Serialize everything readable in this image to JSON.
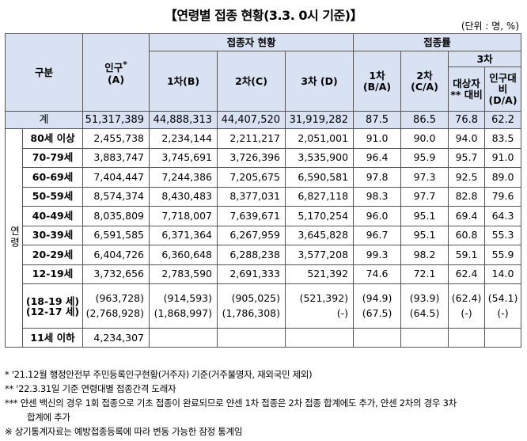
{
  "title": "【연령별 접종 현황(3.3. 0시 기준)】",
  "unit": "(단위 : 명, %)",
  "header": {
    "category": "구분",
    "population": "인구",
    "population_sup": "*",
    "population_sub": "(A)",
    "vaccinated": "접종자 현황",
    "dose1": "1차(B)",
    "dose2": "2차(C)",
    "dose3": "3차 (D)",
    "rate": "접종률",
    "rate1": "1차 (B/A)",
    "rate2": "2차 (C/A)",
    "rate3": "3차",
    "rate3_target": "대상자 ** 대비",
    "rate3_pop": "인구대비 (D/A)"
  },
  "total": {
    "label": "계",
    "population": "51,317,389",
    "dose1": "44,888,313",
    "dose2": "44,407,520",
    "dose3": "31,919,282",
    "rate1": "87.5",
    "rate2": "86.5",
    "rate3_target": "76.8",
    "rate3_pop": "62.2"
  },
  "side_label": "연령",
  "rows": [
    {
      "age": "80세 이상",
      "population": "2,455,738",
      "dose1": "2,234,144",
      "dose2": "2,211,217",
      "dose3": "2,051,001",
      "rate1": "91.0",
      "rate2": "90.0",
      "rate3_target": "94.0",
      "rate3_pop": "83.5"
    },
    {
      "age": "70-79세",
      "population": "3,883,747",
      "dose1": "3,745,691",
      "dose2": "3,726,396",
      "dose3": "3,535,900",
      "rate1": "96.4",
      "rate2": "95.9",
      "rate3_target": "95.7",
      "rate3_pop": "91.0"
    },
    {
      "age": "60-69세",
      "population": "7,404,447",
      "dose1": "7,244,386",
      "dose2": "7,205,675",
      "dose3": "6,590,581",
      "rate1": "97.8",
      "rate2": "97.3",
      "rate3_target": "92.5",
      "rate3_pop": "89.0"
    },
    {
      "age": "50-59세",
      "population": "8,574,374",
      "dose1": "8,430,483",
      "dose2": "8,377,031",
      "dose3": "6,827,118",
      "rate1": "98.3",
      "rate2": "97.7",
      "rate3_target": "82.8",
      "rate3_pop": "79.6"
    },
    {
      "age": "40-49세",
      "population": "8,035,809",
      "dose1": "7,718,007",
      "dose2": "7,639,671",
      "dose3": "5,170,254",
      "rate1": "96.0",
      "rate2": "95.1",
      "rate3_target": "69.4",
      "rate3_pop": "64.3"
    },
    {
      "age": "30-39세",
      "population": "6,591,585",
      "dose1": "6,371,364",
      "dose2": "6,267,959",
      "dose3": "3,645,828",
      "rate1": "96.7",
      "rate2": "95.1",
      "rate3_target": "60.8",
      "rate3_pop": "55.3"
    },
    {
      "age": "20-29세",
      "population": "6,404,726",
      "dose1": "6,360,648",
      "dose2": "6,288,238",
      "dose3": "3,577,208",
      "rate1": "99.3",
      "rate2": "98.2",
      "rate3_target": "59.1",
      "rate3_pop": "55.9"
    },
    {
      "age": "12-19세",
      "population": "3,732,656",
      "dose1": "2,783,590",
      "dose2": "2,691,333",
      "dose3": "521,392",
      "rate1": "74.6",
      "rate2": "72.1",
      "rate3_target": "62.4",
      "rate3_pop": "14.0"
    }
  ],
  "sub_rows": [
    {
      "age": "(18-19 세)",
      "population": "(963,728)",
      "dose1": "(914,593)",
      "dose2": "(905,025)",
      "dose3": "(521,392)",
      "rate1": "(94.9)",
      "rate2": "(93.9)",
      "rate3_target": "(62.4)",
      "rate3_pop": "(54.1)"
    },
    {
      "age": "(12-17 세)",
      "population": "(2,768,928)",
      "dose1": "(1,868,997)",
      "dose2": "(1,786,308)",
      "dose3": "(-)",
      "rate1": "(67.5)",
      "rate2": "(64.5)",
      "rate3_target": "(-)",
      "rate3_pop": "(-)"
    }
  ],
  "under11": {
    "age": "11세 이하",
    "population": "4,234,307"
  },
  "notes": [
    "* '21.12월 행정안전부 주민등록인구현황(거주자) 기준(거주불명자, 재외국민 제외)",
    "** '22.3.31일 기준 연령대별 접종간격 도래자",
    "*** 얀센 백신의 경우 1회 접종으로 기초 접종이 완료되므로 얀센 1차 접종은 2차 접종 합계에도 추가, 얀센 2차의 경우 3차",
    "합계에 추가",
    "※ 상기통계자료는 예방접종등록에 따라 변동 가능한 잠정 통계임"
  ]
}
